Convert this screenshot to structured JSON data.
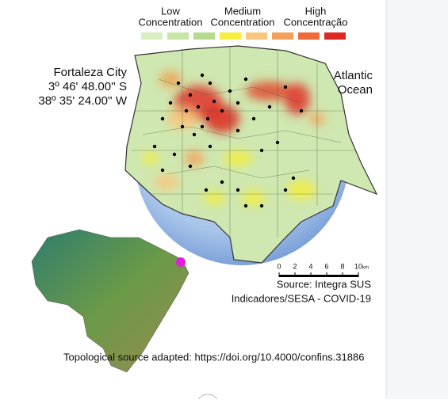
{
  "legend": {
    "labels": [
      [
        "Low",
        "Concentration"
      ],
      [
        "Medium",
        "Concentration"
      ],
      [
        "High",
        "Concentração"
      ]
    ],
    "colors": [
      "#d9efc0",
      "#c7e6a6",
      "#b5dc8d",
      "#f5ee3a",
      "#f8c77c",
      "#f5a05a",
      "#ee6a3c",
      "#dc2a22"
    ]
  },
  "location": {
    "name": "Fortaleza City",
    "latitude": "3º 46' 48.00'' S",
    "longitude": "38º 35' 24.00'' W"
  },
  "ocean_label": [
    "Atlantic",
    "Ocean"
  ],
  "scale_bar": {
    "ticks": [
      0,
      2,
      4,
      6,
      8,
      10
    ],
    "unit": "km"
  },
  "source": [
    "Source: Integra SUS",
    "Indicadores/SESA - COVID-19"
  ],
  "footer": "Topological source adapted: https://doi.org/10.4000/confins.31886"
}
